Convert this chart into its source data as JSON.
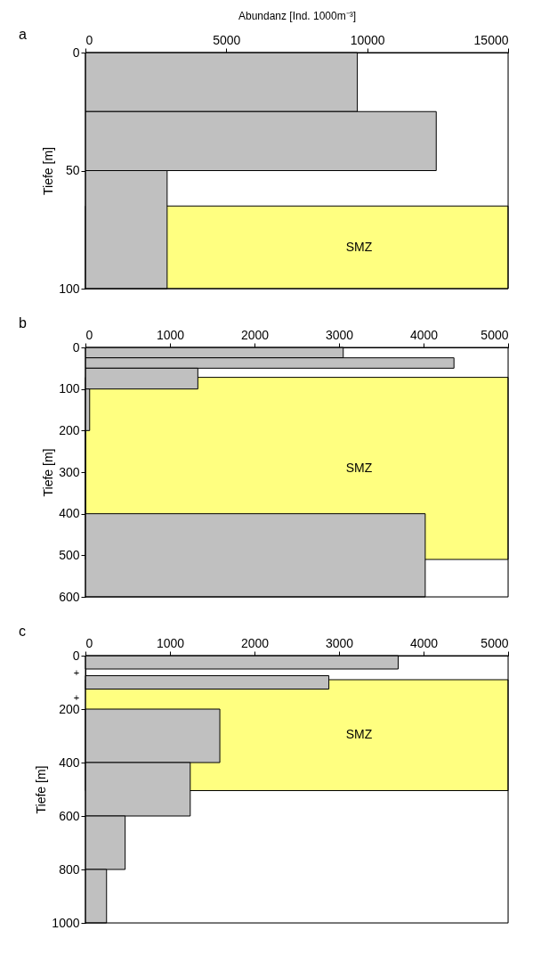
{
  "chart_data": [
    {
      "type": "histogram",
      "orientation": "horizontal",
      "title": "a",
      "xlabel": "Abundanz [Ind. 1000m⁻³]",
      "ylabel": "Tiefe [m]",
      "bins": [
        0,
        25,
        50,
        100
      ],
      "values": [
        9650,
        12450,
        2900
      ],
      "color": "#c0c0c0",
      "xlim": [
        0,
        15000
      ],
      "xticks": [
        0,
        5000,
        10000,
        15000
      ],
      "ylim": [
        100,
        0
      ],
      "yticks": [
        0,
        50,
        100
      ],
      "grid": false,
      "legend": false,
      "bands": [
        {
          "axis": "y",
          "from": 65,
          "to": 100,
          "label": "SMZ",
          "color": "#ffff80"
        }
      ]
    },
    {
      "type": "histogram",
      "orientation": "horizontal",
      "title": "b",
      "ylabel": "Tiefe [m]",
      "bins": [
        0,
        25,
        50,
        100,
        200,
        400,
        600
      ],
      "values": [
        3050,
        4360,
        1330,
        50,
        0,
        4020
      ],
      "color": "#c0c0c0",
      "xlim": [
        0,
        5000
      ],
      "xticks": [
        0,
        1000,
        2000,
        3000,
        4000,
        5000
      ],
      "ylim": [
        600,
        0
      ],
      "yticks": [
        0,
        100,
        200,
        300,
        400,
        500,
        600
      ],
      "grid": false,
      "legend": false,
      "bands": [
        {
          "axis": "y",
          "from": 72,
          "to": 510,
          "label": "SMZ",
          "color": "#ffff80"
        }
      ]
    },
    {
      "type": "histogram",
      "orientation": "horizontal",
      "title": "c",
      "ylabel": "Tiefe [m]",
      "bins": [
        0,
        50,
        75,
        125,
        200,
        400,
        600,
        800,
        1000
      ],
      "values": [
        3700,
        null,
        2880,
        null,
        1590,
        1240,
        470,
        250
      ],
      "color": "#c0c0c0",
      "xlim": [
        0,
        5000
      ],
      "xticks": [
        0,
        1000,
        2000,
        3000,
        4000,
        5000
      ],
      "ylim": [
        1000,
        0
      ],
      "yticks": [
        0,
        200,
        400,
        600,
        800,
        1000
      ],
      "grid": false,
      "legend": false,
      "bands": [
        {
          "axis": "y",
          "from": 90,
          "to": 505,
          "label": "SMZ",
          "color": "#ffff80"
        }
      ],
      "annotations": [
        {
          "text": "+",
          "x": 0,
          "y": 65
        },
        {
          "text": "+",
          "x": 0,
          "y": 160
        }
      ]
    }
  ]
}
